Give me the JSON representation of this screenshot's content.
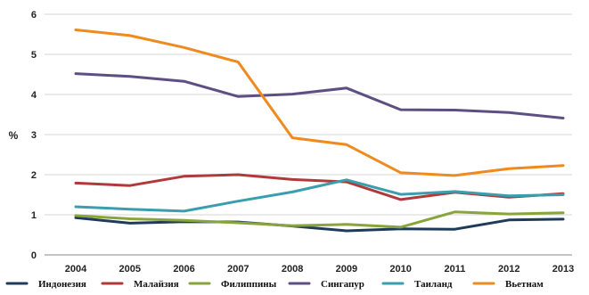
{
  "chart_data": {
    "type": "line",
    "title": "",
    "xlabel": "",
    "ylabel": "%",
    "ylim": [
      0,
      6
    ],
    "yticks": [
      0,
      1,
      2,
      3,
      4,
      5,
      6
    ],
    "grid": true,
    "legend_position": "bottom",
    "x": [
      "2004",
      "2005",
      "2006",
      "2007",
      "2008",
      "2009",
      "2010",
      "2011",
      "2012",
      "2013"
    ],
    "series": [
      {
        "name": "Индонезия",
        "color": "#1f3b5a",
        "values": [
          0.93,
          0.79,
          0.83,
          0.82,
          0.72,
          0.6,
          0.65,
          0.64,
          0.87,
          0.89
        ]
      },
      {
        "name": "Малайзия",
        "color": "#b03a3a",
        "values": [
          1.79,
          1.73,
          1.96,
          2.0,
          1.88,
          1.82,
          1.38,
          1.56,
          1.44,
          1.53
        ]
      },
      {
        "name": "Филиппины",
        "color": "#8aa43c",
        "values": [
          0.98,
          0.9,
          0.86,
          0.8,
          0.73,
          0.76,
          0.69,
          1.07,
          1.02,
          1.05
        ]
      },
      {
        "name": "Сингапур",
        "color": "#5e4f82",
        "values": [
          4.52,
          4.45,
          4.33,
          3.95,
          4.01,
          4.16,
          3.62,
          3.61,
          3.55,
          3.41
        ]
      },
      {
        "name": "Таиланд",
        "color": "#3a9eae",
        "values": [
          1.2,
          1.14,
          1.09,
          1.34,
          1.57,
          1.87,
          1.51,
          1.58,
          1.47,
          1.5
        ]
      },
      {
        "name": "Вьетнам",
        "color": "#ee8a1e",
        "values": [
          5.61,
          5.47,
          5.17,
          4.81,
          2.92,
          2.75,
          2.05,
          1.98,
          2.15,
          2.23
        ]
      }
    ]
  }
}
